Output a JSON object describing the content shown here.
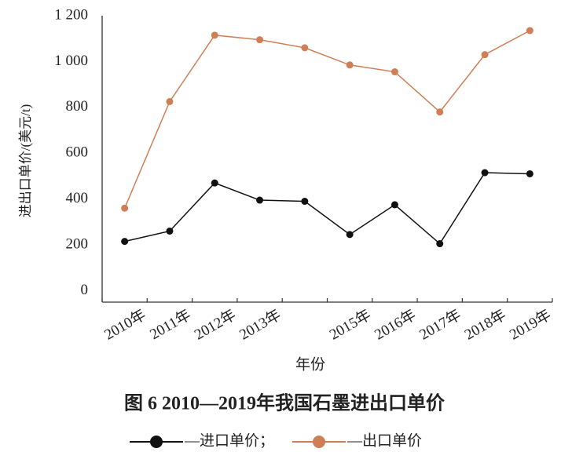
{
  "chart_data": {
    "type": "line",
    "title": "图 6   2010—2019年我国石墨进出口单价",
    "x_label": "年份",
    "y_label": "进出口单价/(美元/t)",
    "categories": [
      "2010年",
      "2011年",
      "2012年",
      "2013年",
      null,
      "2015年",
      "2016年",
      "2017年",
      "2018年",
      "2019年"
    ],
    "series": [
      {
        "name": "—进口单价；",
        "color": "#111111",
        "values": [
          215,
          260,
          470,
          395,
          390,
          245,
          375,
          205,
          515,
          510
        ]
      },
      {
        "name": "—出口单价",
        "color": "#cf7f55",
        "values": [
          360,
          825,
          1115,
          1095,
          1060,
          985,
          955,
          780,
          1030,
          1135
        ]
      }
    ],
    "ylim": [
      -50,
      1200
    ],
    "yticks": [
      0,
      200,
      400,
      600,
      800,
      {
        "value": 1000,
        "label": "1 000"
      },
      {
        "value": 1200,
        "label": "1 200"
      }
    ],
    "grid": false
  }
}
